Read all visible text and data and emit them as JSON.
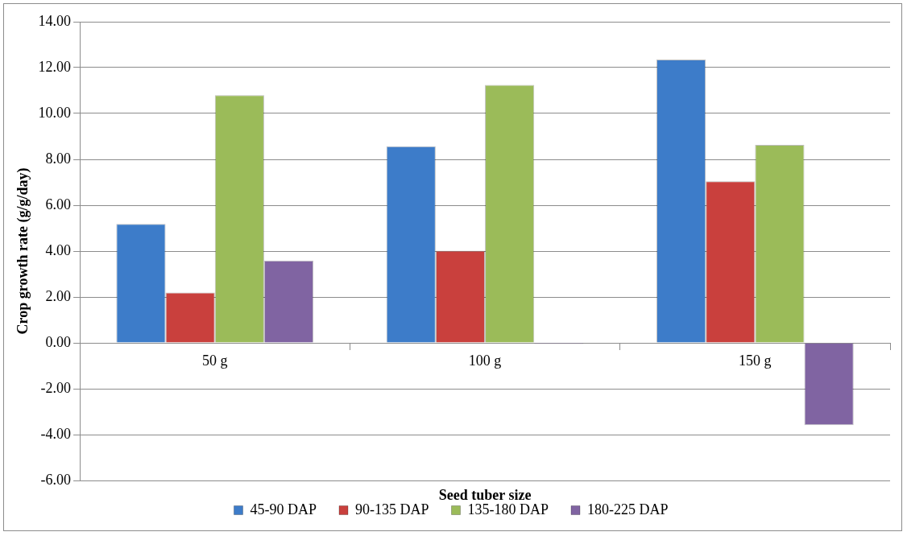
{
  "chart_data": {
    "type": "bar",
    "xlabel": "Seed tuber size",
    "ylabel": "Crop growth rate (g/g/day)",
    "categories": [
      "50 g",
      "100 g",
      "150 g"
    ],
    "series": [
      {
        "name": "45-90 DAP",
        "color": "#3d7cc9",
        "values": [
          5.18,
          8.57,
          12.35
        ]
      },
      {
        "name": "90-135 DAP",
        "color": "#c9403d",
        "values": [
          2.19,
          4.02,
          7.04
        ]
      },
      {
        "name": "135-180 DAP",
        "color": "#9bbb59",
        "values": [
          10.8,
          11.25,
          8.63
        ]
      },
      {
        "name": "180-225 DAP",
        "color": "#8064a2",
        "values": [
          3.59,
          -0.05,
          -3.59
        ]
      }
    ],
    "ylim": [
      -6,
      14
    ],
    "yticks": [
      {
        "value": -6,
        "label": "-6.00"
      },
      {
        "value": -4,
        "label": "-4.00"
      },
      {
        "value": -2,
        "label": "-2.00"
      },
      {
        "value": 0,
        "label": "0.00"
      },
      {
        "value": 2,
        "label": "2.00"
      },
      {
        "value": 4,
        "label": "4.00"
      },
      {
        "value": 6,
        "label": "6.00"
      },
      {
        "value": 8,
        "label": "8.00"
      },
      {
        "value": 10,
        "label": "10.00"
      },
      {
        "value": 12,
        "label": "12.00"
      },
      {
        "value": 14,
        "label": "14.00"
      }
    ],
    "grid": "y",
    "legend": "bottom"
  }
}
